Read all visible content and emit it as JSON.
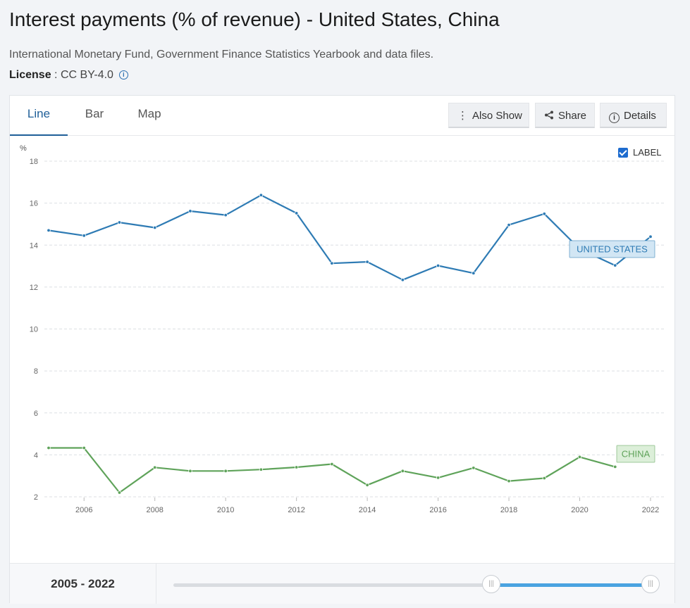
{
  "header": {
    "title": "Interest payments (% of revenue) - United States, China",
    "source": "International Monetary Fund, Government Finance Statistics Yearbook and data files.",
    "license_key": "License",
    "license_sep": " : ",
    "license_value": "CC BY-4.0",
    "info_icon": "i"
  },
  "tabs": [
    {
      "label": "Line",
      "active": true
    },
    {
      "label": "Bar",
      "active": false
    },
    {
      "label": "Map",
      "active": false
    }
  ],
  "toolbar": {
    "also_show_label": "Also Show",
    "share_label": "Share",
    "details_label": "Details",
    "details_icon": "i"
  },
  "label_toggle": {
    "label": "LABEL",
    "checked": true
  },
  "range": {
    "label": "2005 - 2022",
    "handle_glyph": "|||"
  },
  "colors": {
    "united_states": "#2e7bb4",
    "china": "#5fa35a",
    "accent": "#1f5f98"
  },
  "chart_data": {
    "type": "line",
    "ylabel": "%",
    "ylim": [
      2,
      18
    ],
    "yticks": [
      2,
      4,
      6,
      8,
      10,
      12,
      14,
      16,
      18
    ],
    "xlim": [
      2005,
      2022
    ],
    "xticks": [
      2006,
      2008,
      2010,
      2012,
      2014,
      2016,
      2018,
      2020,
      2022
    ],
    "grid": true,
    "series": [
      {
        "name": "UNITED STATES",
        "x": [
          2005,
          2006,
          2007,
          2008,
          2009,
          2010,
          2011,
          2012,
          2013,
          2014,
          2015,
          2016,
          2017,
          2018,
          2019,
          2020,
          2021,
          2022
        ],
        "y": [
          14.7,
          14.45,
          15.08,
          14.83,
          15.62,
          15.43,
          16.38,
          15.52,
          13.13,
          13.2,
          12.34,
          13.02,
          12.66,
          14.96,
          15.49,
          13.81,
          13.03,
          14.4
        ]
      },
      {
        "name": "CHINA",
        "x": [
          2005,
          2006,
          2007,
          2008,
          2009,
          2010,
          2011,
          2012,
          2013,
          2014,
          2015,
          2016,
          2017,
          2018,
          2019,
          2020,
          2021
        ],
        "y": [
          4.33,
          4.33,
          2.2,
          3.4,
          3.23,
          3.23,
          3.3,
          3.41,
          3.56,
          2.56,
          3.23,
          2.91,
          3.38,
          2.75,
          2.89,
          3.9,
          3.43
        ]
      }
    ]
  }
}
